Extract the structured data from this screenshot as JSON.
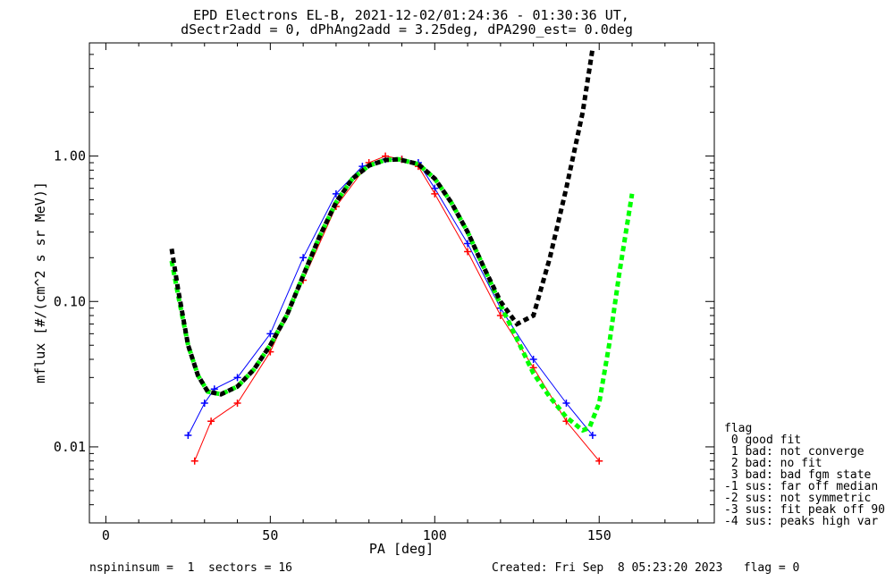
{
  "title": {
    "line1": "EPD Electrons EL-B, 2021-12-02/01:24:36 - 01:30:36 UT,",
    "line2": "dSectr2add = 0, dPhAng2add = 3.25deg, dPA290_est=    0.0deg"
  },
  "footer": {
    "left": "nspininsum =  1  sectors = 16",
    "right": "Created: Fri Sep  8 05:23:20 2023   flag = 0"
  },
  "legend": {
    "title": "flag",
    "items": [
      " 0 good fit",
      " 1 bad: not converge",
      " 2 bad: no fit",
      " 3 bad: bad fgm state",
      "-1 sus: far off median",
      "-2 sus: not symmetric",
      "-3 sus: fit peak off 90",
      "-4 sus: peaks high var"
    ]
  },
  "chart_data": {
    "type": "line",
    "xlabel": "PA [deg]",
    "ylabel": "mflux [#/(cm^2 s sr MeV)]",
    "xlim": [
      -5,
      185
    ],
    "ylim": [
      0.003,
      6.0
    ],
    "yscale": "log",
    "xticks": [
      0,
      50,
      100,
      150
    ],
    "xtick_labels": [
      "0",
      "50",
      "100",
      "150"
    ],
    "yticks": [
      0.01,
      0.1,
      1.0
    ],
    "ytick_labels": [
      "0.01",
      "0.10",
      "1.00"
    ],
    "series": [
      {
        "color": "#0000ff",
        "style": "line-with-plus-markers",
        "x": [
          25,
          30,
          33,
          40,
          50,
          60,
          70,
          78,
          85,
          90,
          95,
          100,
          110,
          120,
          130,
          140,
          148
        ],
        "y": [
          0.012,
          0.02,
          0.025,
          0.03,
          0.06,
          0.2,
          0.55,
          0.85,
          0.95,
          0.95,
          0.9,
          0.6,
          0.25,
          0.09,
          0.04,
          0.02,
          0.012
        ]
      },
      {
        "color": "#ff0000",
        "style": "line-with-plus-markers",
        "x": [
          27,
          32,
          40,
          50,
          60,
          70,
          80,
          85,
          90,
          95,
          100,
          110,
          120,
          130,
          140,
          150
        ],
        "y": [
          0.008,
          0.015,
          0.02,
          0.045,
          0.14,
          0.45,
          0.9,
          1.0,
          0.95,
          0.85,
          0.55,
          0.22,
          0.08,
          0.035,
          0.015,
          0.008
        ]
      },
      {
        "color": "#00ff00",
        "style": "thick-dashed",
        "x": [
          20,
          22,
          25,
          28,
          31,
          35,
          40,
          45,
          50,
          55,
          60,
          65,
          70,
          75,
          80,
          85,
          89,
          95,
          100,
          105,
          110,
          115,
          120,
          125,
          130,
          135,
          140,
          145,
          147,
          150,
          153,
          156,
          160
        ],
        "y": [
          0.19,
          0.11,
          0.05,
          0.031,
          0.024,
          0.023,
          0.026,
          0.034,
          0.05,
          0.08,
          0.15,
          0.28,
          0.48,
          0.7,
          0.86,
          0.94,
          0.95,
          0.88,
          0.7,
          0.48,
          0.3,
          0.17,
          0.095,
          0.055,
          0.032,
          0.022,
          0.016,
          0.013,
          0.0135,
          0.02,
          0.05,
          0.15,
          0.55
        ]
      },
      {
        "color": "#000000",
        "style": "thick-dashed",
        "x": [
          20,
          22,
          25,
          28,
          31,
          35,
          40,
          45,
          50,
          55,
          60,
          65,
          70,
          75,
          80,
          85,
          89,
          95,
          100,
          105,
          110,
          115,
          120,
          125,
          130,
          135,
          140,
          145,
          148
        ],
        "y": [
          0.23,
          0.12,
          0.05,
          0.031,
          0.024,
          0.023,
          0.026,
          0.034,
          0.05,
          0.08,
          0.15,
          0.28,
          0.48,
          0.7,
          0.86,
          0.94,
          0.95,
          0.88,
          0.7,
          0.48,
          0.3,
          0.17,
          0.1,
          0.07,
          0.08,
          0.2,
          0.6,
          2.0,
          5.5
        ]
      }
    ]
  },
  "colors": {
    "blue": "#0000ff",
    "red": "#ff0000",
    "green": "#00ff00",
    "black": "#000000"
  }
}
